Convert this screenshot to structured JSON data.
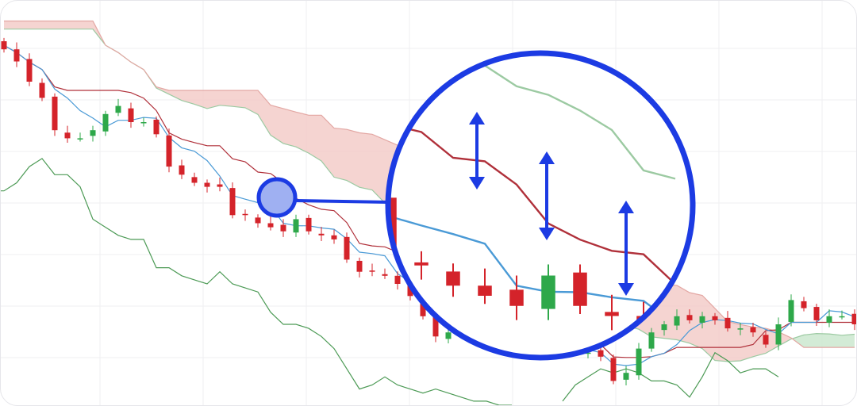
{
  "chart_data": {
    "type": "candlestick",
    "title": "",
    "xlabel": "",
    "ylabel": "",
    "ylim": [
      0,
      100
    ],
    "grid": true,
    "indicator": "ichimoku",
    "closes": [
      88,
      85,
      80,
      76,
      68,
      66,
      66,
      68,
      72,
      74,
      70,
      70,
      67,
      59,
      57,
      55,
      54,
      54,
      47,
      47,
      45,
      44,
      43,
      46,
      43,
      42,
      41,
      36,
      33,
      33,
      32,
      30,
      27,
      22,
      17,
      18,
      20,
      18,
      17,
      16,
      17,
      16,
      15,
      14,
      14,
      13,
      13,
      12,
      6,
      8,
      14,
      18,
      20,
      22,
      21,
      22,
      21,
      19,
      19,
      18,
      15,
      20,
      26,
      24,
      21,
      22,
      22,
      20
    ],
    "magnifier": {
      "zoom": 2.5,
      "arrows": 3
    },
    "colors": {
      "up": "#2ea84a",
      "down": "#d4232a",
      "tenkan": "#4a9ad6",
      "kijun": "#b0303a",
      "chikou": "#4c9a55",
      "cloud_bear": "#f3c9c6",
      "cloud_bull": "#c8e6cc",
      "accent": "#1c3be3",
      "grid": "#efeff2"
    }
  }
}
